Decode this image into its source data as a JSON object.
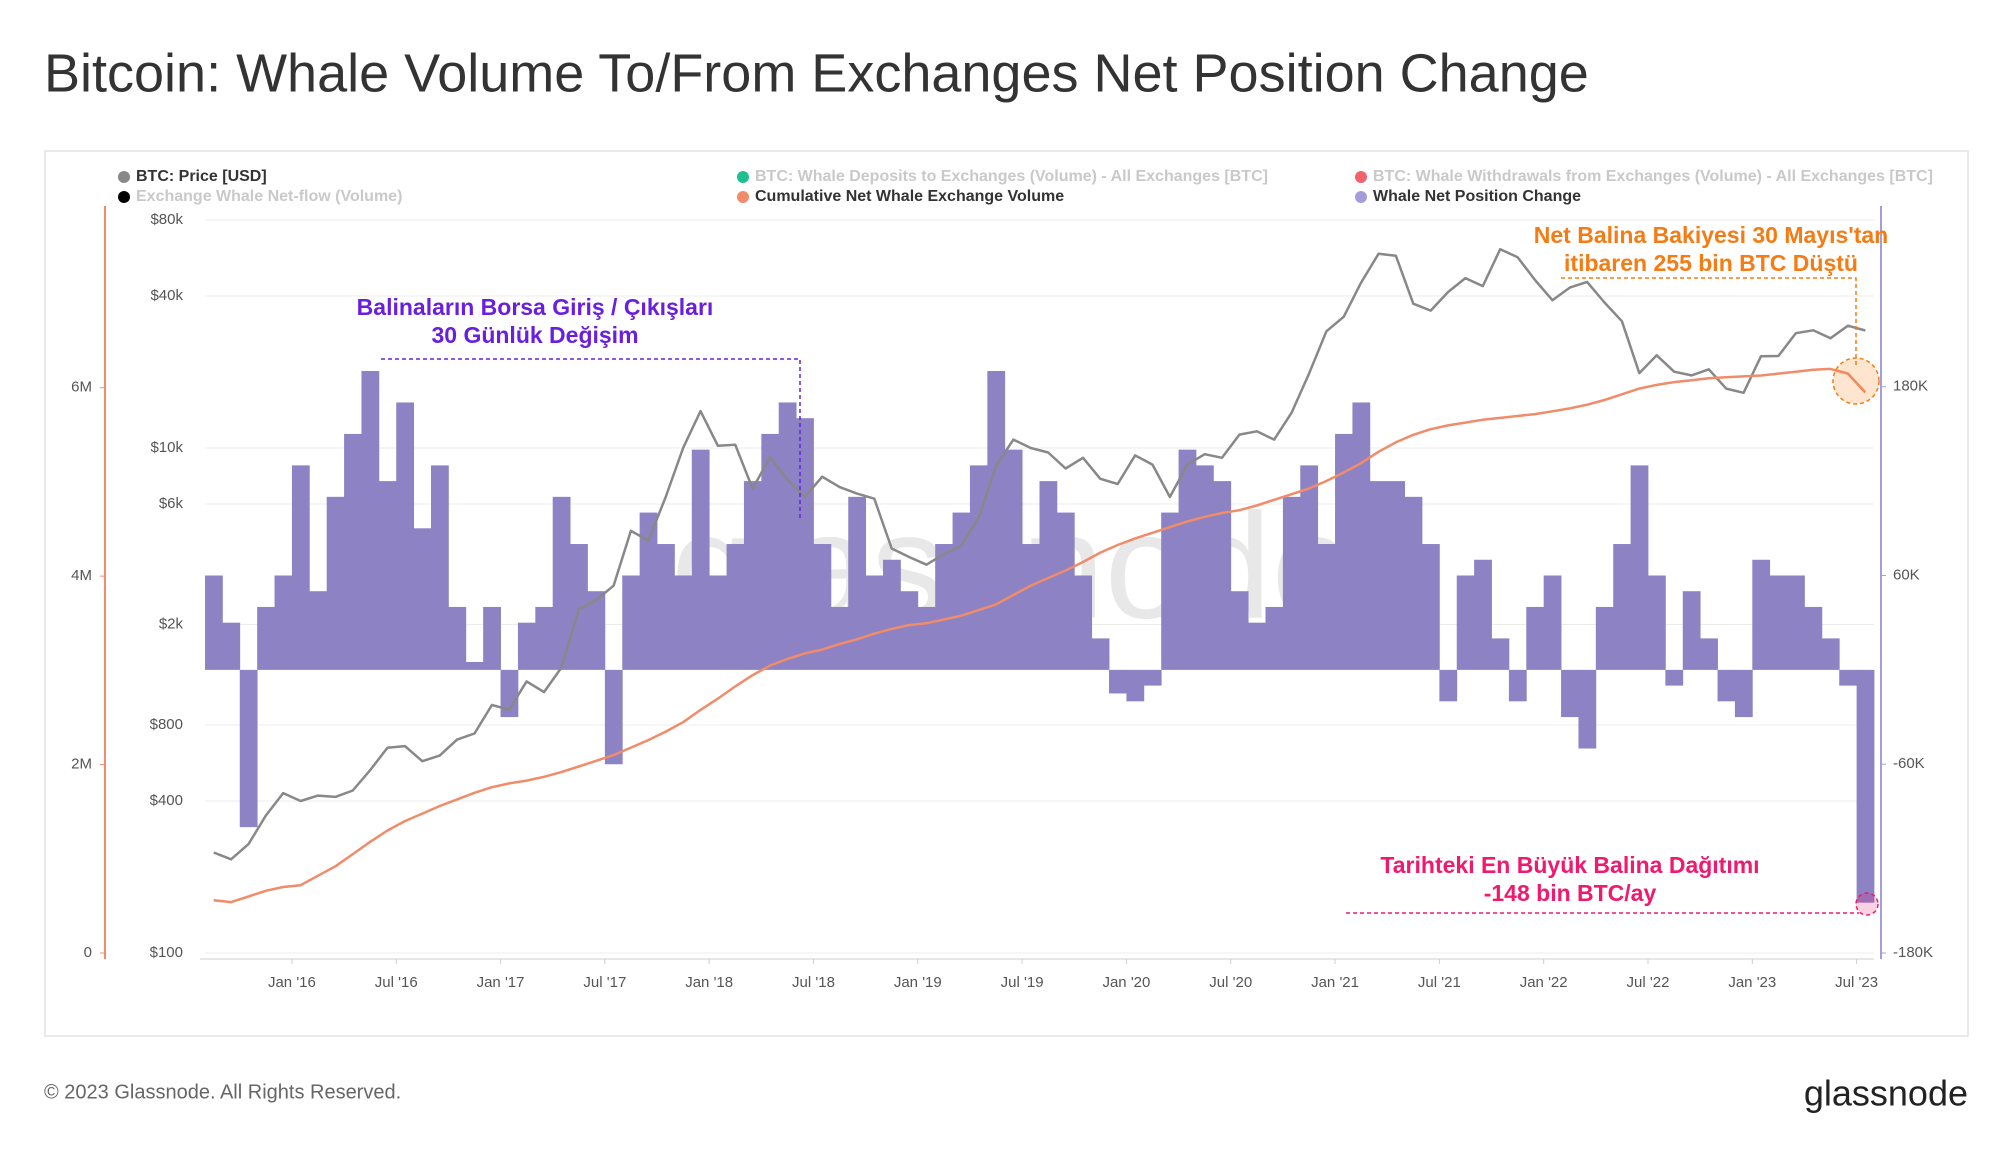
{
  "chart_data": {
    "type": "combo",
    "title": "Bitcoin: Whale Volume To/From Exchanges Net Position Change",
    "watermark": "glassnode",
    "x": [
      "2015-08",
      "2015-09",
      "2015-10",
      "2015-11",
      "2015-12",
      "2016-01",
      "2016-02",
      "2016-03",
      "2016-04",
      "2016-05",
      "2016-06",
      "2016-07",
      "2016-08",
      "2016-09",
      "2016-10",
      "2016-11",
      "2016-12",
      "2017-01",
      "2017-02",
      "2017-03",
      "2017-04",
      "2017-05",
      "2017-06",
      "2017-07",
      "2017-08",
      "2017-09",
      "2017-10",
      "2017-11",
      "2017-12",
      "2018-01",
      "2018-02",
      "2018-03",
      "2018-04",
      "2018-05",
      "2018-06",
      "2018-07",
      "2018-08",
      "2018-09",
      "2018-10",
      "2018-11",
      "2018-12",
      "2019-01",
      "2019-02",
      "2019-03",
      "2019-04",
      "2019-05",
      "2019-06",
      "2019-07",
      "2019-08",
      "2019-09",
      "2019-10",
      "2019-11",
      "2019-12",
      "2020-01",
      "2020-02",
      "2020-03",
      "2020-04",
      "2020-05",
      "2020-06",
      "2020-07",
      "2020-08",
      "2020-09",
      "2020-10",
      "2020-11",
      "2020-12",
      "2021-01",
      "2021-02",
      "2021-03",
      "2021-04",
      "2021-05",
      "2021-06",
      "2021-07",
      "2021-08",
      "2021-09",
      "2021-10",
      "2021-11",
      "2021-12",
      "2022-01",
      "2022-02",
      "2022-03",
      "2022-04",
      "2022-05",
      "2022-06",
      "2022-07",
      "2022-08",
      "2022-09",
      "2022-10",
      "2022-11",
      "2022-12",
      "2023-01",
      "2023-02",
      "2023-03",
      "2023-04",
      "2023-05",
      "2023-06",
      "2023-07"
    ],
    "xlim": [
      "2015-08",
      "2023-08"
    ],
    "xticks": [
      {
        "value": "2016-01",
        "label": "Jan '16"
      },
      {
        "value": "2016-07",
        "label": "Jul '16"
      },
      {
        "value": "2017-01",
        "label": "Jan '17"
      },
      {
        "value": "2017-07",
        "label": "Jul '17"
      },
      {
        "value": "2018-01",
        "label": "Jan '18"
      },
      {
        "value": "2018-07",
        "label": "Jul '18"
      },
      {
        "value": "2019-01",
        "label": "Jan '19"
      },
      {
        "value": "2019-07",
        "label": "Jul '19"
      },
      {
        "value": "2020-01",
        "label": "Jan '20"
      },
      {
        "value": "2020-07",
        "label": "Jul '20"
      },
      {
        "value": "2021-01",
        "label": "Jan '21"
      },
      {
        "value": "2021-07",
        "label": "Jul '21"
      },
      {
        "value": "2022-01",
        "label": "Jan '22"
      },
      {
        "value": "2022-07",
        "label": "Jul '22"
      },
      {
        "value": "2023-01",
        "label": "Jan '23"
      },
      {
        "value": "2023-07",
        "label": "Jul '23"
      }
    ],
    "ylim": [
      100,
      80000
    ],
    "log_y": true,
    "grid": true,
    "yticks": [
      {
        "value": 100,
        "label": "$100"
      },
      {
        "value": 400,
        "label": "$400"
      },
      {
        "value": 800,
        "label": "$800"
      },
      {
        "value": 2000,
        "label": "$2k"
      },
      {
        "value": 6000,
        "label": "$6k"
      },
      {
        "value": 10000,
        "label": "$10k"
      },
      {
        "value": 40000,
        "label": "$40k"
      },
      {
        "value": 80000,
        "label": "$80k"
      }
    ],
    "y2lim": [
      0,
      7780000
    ],
    "y2ticks": [
      0,
      {
        "value": 2000000,
        "label": "2M"
      },
      {
        "value": 4000000,
        "label": "4M"
      },
      {
        "value": 6000000,
        "label": "6M"
      }
    ],
    "y3lim": [
      -180000,
      286000
    ],
    "y3ticks": [
      {
        "value": -180000,
        "label": "-180K"
      },
      {
        "value": -60000,
        "label": "-60K"
      },
      {
        "value": 60000,
        "label": "60K"
      },
      {
        "value": 180000,
        "label": "180K"
      }
    ],
    "series": [
      {
        "name": "BTC: Price [USD]",
        "color": "#888888",
        "type": "line",
        "axis": "y",
        "values": [
          250,
          235,
          270,
          350,
          430,
          400,
          420,
          415,
          440,
          530,
          650,
          660,
          575,
          605,
          700,
          740,
          960,
          920,
          1190,
          1080,
          1350,
          2300,
          2500,
          2850,
          4700,
          4300,
          6400,
          10000,
          14000,
          10200,
          10300,
          6900,
          9200,
          7500,
          6400,
          7700,
          7000,
          6600,
          6300,
          4000,
          3700,
          3450,
          3800,
          4100,
          5300,
          8500,
          10800,
          10000,
          9600,
          8300,
          9150,
          7550,
          7200,
          9350,
          8600,
          6400,
          8600,
          9450,
          9150,
          11300,
          11650,
          10800,
          13800,
          19700,
          29000,
          33100,
          45200,
          58800,
          57700,
          37300,
          35000,
          41500,
          47100,
          43800,
          61300,
          57000,
          46300,
          38500,
          43200,
          45500,
          37700,
          31800,
          19800,
          23300,
          20050,
          19400,
          20500,
          17200,
          16550,
          23100,
          23150,
          28500,
          29250,
          27200,
          30500,
          29200
        ]
      },
      {
        "name": "BTC: Whale Deposits to Exchanges (Volume) - All Exchanges [BTC]",
        "color": "#1fbf8f",
        "visible": false
      },
      {
        "name": "BTC: Whale Withdrawals from Exchanges (Volume) - All Exchanges [BTC]",
        "color": "#f0636e",
        "visible": false
      },
      {
        "name": "Exchange Whale Net-flow (Volume)",
        "color": "#000000",
        "visible": false
      },
      {
        "name": "Cumulative Net Whale Exchange Volume",
        "color": "#f08c6a",
        "type": "line",
        "axis": "y2",
        "values": [
          560000,
          540000,
          600000,
          660000,
          700000,
          720000,
          820000,
          920000,
          1050000,
          1180000,
          1300000,
          1400000,
          1480000,
          1560000,
          1630000,
          1700000,
          1760000,
          1800000,
          1830000,
          1870000,
          1920000,
          1980000,
          2040000,
          2100000,
          2180000,
          2260000,
          2350000,
          2450000,
          2580000,
          2700000,
          2830000,
          2950000,
          3050000,
          3120000,
          3180000,
          3220000,
          3280000,
          3330000,
          3390000,
          3440000,
          3480000,
          3500000,
          3540000,
          3580000,
          3640000,
          3700000,
          3800000,
          3900000,
          3980000,
          4060000,
          4150000,
          4250000,
          4330000,
          4400000,
          4460000,
          4520000,
          4580000,
          4630000,
          4670000,
          4700000,
          4750000,
          4810000,
          4870000,
          4930000,
          5010000,
          5100000,
          5200000,
          5320000,
          5420000,
          5500000,
          5560000,
          5600000,
          5630000,
          5660000,
          5680000,
          5700000,
          5720000,
          5750000,
          5780000,
          5820000,
          5870000,
          5930000,
          5990000,
          6030000,
          6060000,
          6080000,
          6100000,
          6110000,
          6120000,
          6130000,
          6150000,
          6170000,
          6190000,
          6200000,
          6150000,
          5950000
        ]
      },
      {
        "name": "Whale Net Position Change",
        "color": "#8c82c4",
        "legend_color": "#a39ddb",
        "type": "bar",
        "axis": "y3",
        "values": [
          60000,
          30000,
          -100000,
          40000,
          60000,
          130000,
          50000,
          110000,
          150000,
          190000,
          120000,
          170000,
          90000,
          130000,
          40000,
          5000,
          40000,
          -30000,
          30000,
          40000,
          110000,
          80000,
          50000,
          -60000,
          60000,
          100000,
          80000,
          60000,
          140000,
          60000,
          80000,
          120000,
          150000,
          170000,
          160000,
          80000,
          40000,
          110000,
          60000,
          70000,
          50000,
          40000,
          80000,
          100000,
          130000,
          190000,
          140000,
          80000,
          120000,
          100000,
          60000,
          20000,
          -15000,
          -20000,
          -10000,
          100000,
          140000,
          130000,
          120000,
          50000,
          30000,
          40000,
          110000,
          130000,
          80000,
          150000,
          170000,
          120000,
          120000,
          110000,
          80000,
          -20000,
          60000,
          70000,
          20000,
          -20000,
          40000,
          60000,
          -30000,
          -50000,
          40000,
          80000,
          130000,
          60000,
          -10000,
          50000,
          20000,
          -20000,
          -30000,
          70000,
          60000,
          60000,
          40000,
          20000,
          -10000,
          -148000
        ]
      }
    ],
    "annotations": [
      {
        "lines": [
          "Balinaların Borsa Giriş / Çıkışları",
          "30 Günlük Değişim"
        ],
        "color": "#6a1fe0"
      },
      {
        "lines": [
          "Net Balina Bakiyesi 30 Mayıs'tan",
          "itibaren 255 bin BTC Düştü"
        ],
        "color": "#f57c14"
      },
      {
        "lines": [
          "Tarihteki En Büyük Balina Dağıtımı",
          "-148 bin BTC/ay"
        ],
        "color": "#f0196e"
      }
    ]
  },
  "footer": {
    "copyright": "© 2023 Glassnode. All Rights Reserved.",
    "logo": "glassnode"
  }
}
